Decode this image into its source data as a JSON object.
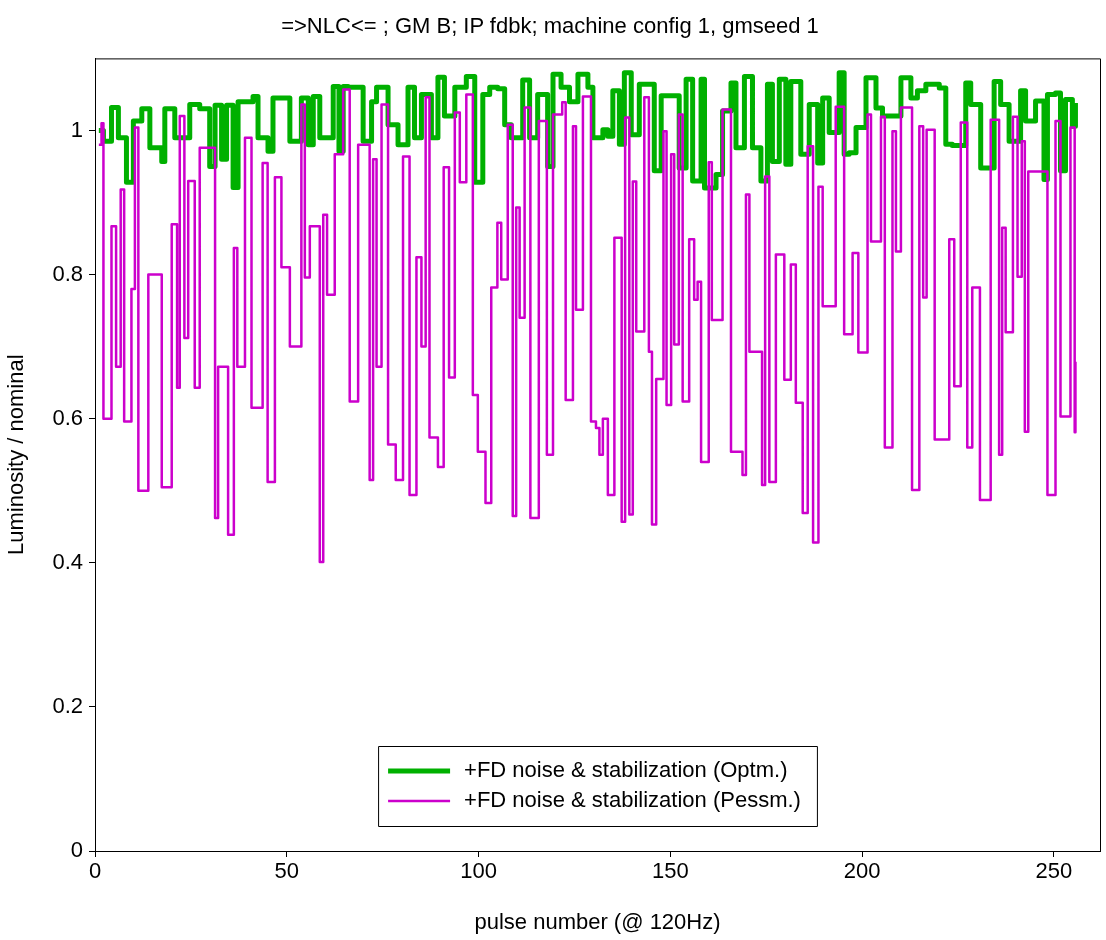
{
  "chart_data": {
    "type": "step",
    "title": "=>NLC<= ; GM B; IP fdbk; machine config 1, gmseed 1",
    "xlabel": "pulse number (@ 120Hz)",
    "ylabel": "Luminosity / nominal",
    "xlim": [
      0,
      262
    ],
    "xticks": [
      0,
      50,
      100,
      150,
      200,
      250
    ],
    "ylim": [
      0,
      1.1
    ],
    "yticks": [
      0,
      0.2,
      0.4,
      0.6,
      0.8,
      1
    ],
    "legend": "bottom",
    "series": [
      {
        "name": "+FD noise & stabilization (Optm.)",
        "color": "#00b000",
        "x": [
          1,
          2.2,
          4.3,
          6.1,
          8.2,
          10,
          12.2,
          14.3,
          17.4,
          18.2,
          20.8,
          24.7,
          27.3,
          29.9,
          31.3,
          33,
          34.3,
          36,
          37.3,
          41.2,
          42.5,
          45.1,
          46.4,
          49,
          50.8,
          53.8,
          55.6,
          56.9,
          58.6,
          62.1,
          63.6,
          64.7,
          66,
          69.9,
          72.1,
          73.4,
          76.4,
          79,
          81.6,
          83.3,
          85.1,
          87.7,
          89.4,
          91.1,
          93.8,
          96.8,
          99,
          101.1,
          102.9,
          105,
          106.8,
          108.5,
          111.5,
          113.3,
          115.4,
          118,
          119.4,
          121.5,
          123.7,
          125.9,
          128.5,
          129.8,
          132.4,
          133.7,
          135,
          136.7,
          138,
          139.8,
          141.9,
          144.1,
          145.8,
          147.6,
          150.2,
          152.3,
          154.1,
          155.8,
          158,
          158.9,
          161.9,
          163.6,
          165.8,
          167.1,
          169.3,
          171.4,
          173.6,
          175.3,
          176.6,
          178.4,
          180.1,
          181.4,
          184,
          186.2,
          188.4,
          189.7,
          191.4,
          194,
          195.3,
          196.6,
          198.4,
          201,
          203.6,
          205.3,
          210.1,
          212.7,
          214.4,
          216.6,
          220.1,
          221.8,
          223.5,
          227,
          228.3,
          230.9,
          234.4,
          236.1,
          238.3,
          241.3,
          242.6,
          245.2,
          247.4,
          248.3,
          250.4,
          251.7,
          253,
          254.8,
          255.6
        ],
        "values": [
          1.0,
          0.985,
          1.032,
          0.99,
          0.928,
          1.013,
          1.03,
          0.976,
          0.957,
          1.03,
          0.99,
          1.036,
          1.03,
          0.95,
          1.035,
          0.96,
          1.035,
          0.921,
          1.04,
          1.047,
          0.99,
          0.971,
          1.045,
          1.045,
          0.985,
          1.045,
          0.98,
          1.047,
          0.99,
          1.061,
          0.971,
          1.061,
          1.06,
          0.985,
          1.04,
          1.06,
          1.008,
          0.98,
          1.06,
          0.99,
          1.05,
          0.99,
          1.074,
          1.02,
          1.06,
          1.075,
          0.928,
          1.05,
          1.06,
          1.058,
          1.008,
          0.99,
          1.07,
          0.99,
          1.05,
          0.95,
          1.078,
          1.06,
          1.04,
          1.078,
          1.06,
          0.99,
          1.001,
          0.992,
          1.055,
          0.981,
          1.08,
          0.994,
          1.064,
          1.064,
          0.944,
          1.048,
          1.048,
          0.948,
          1.071,
          0.93,
          1.071,
          0.92,
          0.939,
          1.027,
          1.066,
          0.976,
          1.075,
          0.976,
          0.93,
          1.064,
          0.957,
          1.071,
          0.953,
          1.068,
          0.967,
          1.036,
          0.955,
          1.045,
          0.997,
          1.08,
          0.967,
          0.969,
          1.004,
          1.073,
          1.031,
          1.02,
          1.073,
          1.045,
          1.055,
          1.064,
          1.059,
          0.981,
          0.979,
          1.066,
          1.036,
          0.948,
          1.068,
          1.036,
          0.985,
          1.055,
          1.013,
          1.041,
          0.932,
          1.05,
          1.052,
          0.944,
          1.043,
          1.006,
          1.038
        ]
      },
      {
        "name": "+FD noise & stabilization (Pessm.)",
        "color": "#cc00cc",
        "x": [
          1,
          1.7,
          2.2,
          4.3,
          5.5,
          6.7,
          7.6,
          9.5,
          10.4,
          11.3,
          13.9,
          17.4,
          20,
          21.4,
          22.1,
          23.3,
          24.3,
          26,
          27.3,
          31.3,
          32.1,
          34.7,
          36.2,
          37.1,
          39.1,
          40.8,
          43.7,
          45,
          46.9,
          48.6,
          50.8,
          53.8,
          54.7,
          56,
          58.6,
          59.5,
          60.5,
          62.5,
          64.7,
          66.4,
          68.6,
          71.6,
          72.5,
          73.4,
          74.7,
          76.4,
          78.4,
          80.3,
          82,
          83.8,
          85.1,
          86.2,
          87.2,
          89.4,
          90.9,
          92.3,
          93.8,
          95.1,
          96.8,
          98.5,
          99.8,
          101.8,
          103.3,
          104.9,
          105.9,
          107.6,
          108.9,
          109.8,
          110.7,
          112,
          113.5,
          115.7,
          117.8,
          119.4,
          121.8,
          122.7,
          124.6,
          125.4,
          127.2,
          129.3,
          130.6,
          131.5,
          132.4,
          133.7,
          135.4,
          137.3,
          138.2,
          139.3,
          140.2,
          141.1,
          143.2,
          144.4,
          145.2,
          146.3,
          148.2,
          149,
          150.2,
          151,
          152.2,
          153.2,
          154.9,
          156.2,
          157.1,
          158,
          160,
          160.8,
          163.6,
          165.8,
          168.8,
          169.7,
          170.6,
          173.9,
          174.7,
          175.8,
          177.5,
          179.7,
          181.4,
          182.7,
          184.5,
          185.8,
          187.2,
          188.6,
          189.7,
          193.1,
          195.3,
          196.2,
          197.5,
          199,
          201.4,
          202.3,
          204.9,
          205.9,
          207.9,
          208.8,
          210.1,
          213,
          214.9,
          215.9,
          216.8,
          218.9,
          222.7,
          224,
          225.7,
          227.4,
          228.7,
          230.7,
          233.5,
          235.7,
          236.5,
          237.4,
          239.3,
          240.5,
          241.6,
          242.4,
          243.3,
          248.3,
          250.4,
          251.7,
          254.3,
          255.4,
          255.6
        ],
        "values": [
          0.98,
          1.01,
          0.6,
          0.867,
          0.672,
          0.918,
          0.596,
          0.78,
          1.004,
          0.5,
          0.8,
          0.505,
          0.87,
          0.643,
          1.02,
          0.712,
          0.93,
          0.643,
          0.976,
          0.462,
          0.672,
          0.439,
          0.837,
          0.672,
          0.99,
          0.615,
          0.955,
          0.512,
          0.935,
          0.81,
          0.7,
          1.036,
          0.796,
          0.867,
          0.401,
          0.883,
          0.772,
          0.967,
          1.057,
          0.624,
          0.98,
          0.515,
          0.96,
          0.672,
          1.036,
          0.564,
          0.515,
          0.964,
          0.494,
          0.824,
          0.7,
          1.046,
          0.574,
          0.533,
          0.949,
          0.657,
          1.025,
          0.928,
          1.05,
          0.633,
          0.554,
          0.483,
          0.782,
          0.872,
          0.793,
          1.008,
          0.465,
          0.893,
          0.74,
          1.032,
          0.462,
          1.013,
          0.55,
          1.022,
          1.039,
          0.626,
          1.006,
          0.751,
          1.047,
          0.596,
          0.587,
          0.55,
          0.6,
          0.494,
          0.851,
          0.457,
          1.018,
          0.467,
          0.929,
          0.721,
          1.046,
          0.693,
          0.453,
          0.655,
          0.999,
          0.619,
          0.967,
          0.703,
          1.022,
          0.624,
          0.849,
          0.765,
          0.79,
          0.54,
          0.956,
          0.737,
          1.029,
          0.554,
          0.522,
          0.911,
          0.693,
          0.508,
          0.936,
          0.512,
          0.828,
          0.654,
          0.814,
          0.622,
          0.469,
          0.978,
          0.428,
          0.922,
          0.756,
          1.033,
          0.717,
          0.717,
          0.83,
          0.692,
          1.022,
          0.846,
          1.019,
          0.56,
          0.999,
          0.832,
          1.032,
          0.501,
          1.006,
          0.768,
          1.001,
          0.571,
          0.849,
          0.645,
          1.011,
          0.56,
          0.782,
          0.487,
          1.015,
          0.55,
          0.865,
          0.72,
          1.019,
          0.797,
          0.985,
          0.582,
          0.943,
          0.494,
          1.013,
          0.603,
          1.004,
          0.581,
          0.679
        ]
      }
    ]
  }
}
